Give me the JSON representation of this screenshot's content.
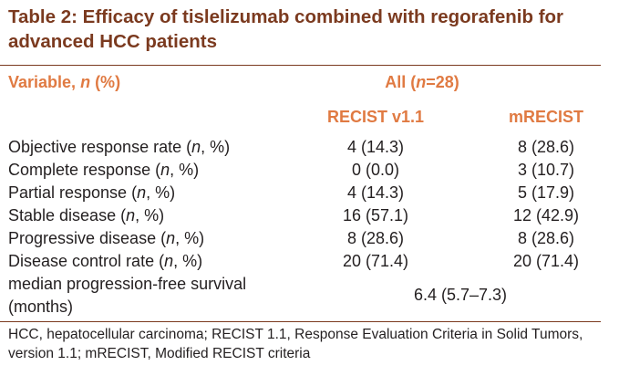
{
  "table": {
    "title": "Table 2: Efficacy of tislelizumab combined with regorafenib for advanced HCC patients",
    "header": {
      "variable_prefix": "Variable, ",
      "variable_n": "n",
      "variable_suffix": " (%)",
      "all_prefix": "All (",
      "all_n": "n",
      "all_suffix": "=28)",
      "col1": "RECIST v1.1",
      "col2": "mRECIST"
    },
    "rows": [
      {
        "label_prefix": "Objective response rate (",
        "label_n": "n",
        "label_suffix": ", %)",
        "recist": "4 (14.3)",
        "mrecist": "8 (28.6)"
      },
      {
        "label_prefix": "Complete response (",
        "label_n": "n",
        "label_suffix": ", %)",
        "recist": "0 (0.0)",
        "mrecist": "3 (10.7)"
      },
      {
        "label_prefix": "Partial response (",
        "label_n": "n",
        "label_suffix": ", %)",
        "recist": "4 (14.3)",
        "mrecist": "5 (17.9)"
      },
      {
        "label_prefix": "Stable disease (",
        "label_n": "n",
        "label_suffix": ", %)",
        "recist": "16 (57.1)",
        "mrecist": "12 (42.9)"
      },
      {
        "label_prefix": "Progressive disease (",
        "label_n": "n",
        "label_suffix": ", %)",
        "recist": "8 (28.6)",
        "mrecist": "8 (28.6)"
      },
      {
        "label_prefix": "Disease control rate (",
        "label_n": "n",
        "label_suffix": ", %)",
        "recist": "20 (71.4)",
        "mrecist": "20 (71.4)"
      }
    ],
    "pfs": {
      "label": "median progression-free survival (months)",
      "value": "6.4 (5.7–7.3)"
    },
    "footnote": "HCC, hepatocellular carcinoma; RECIST 1.1, Response Evaluation Criteria in Solid Tumors, version 1.1; mRECIST, Modified RECIST criteria",
    "colors": {
      "title": "#7b3a1f",
      "header": "#e07a42",
      "rule": "#7b3a1f",
      "text": "#231f20"
    }
  }
}
